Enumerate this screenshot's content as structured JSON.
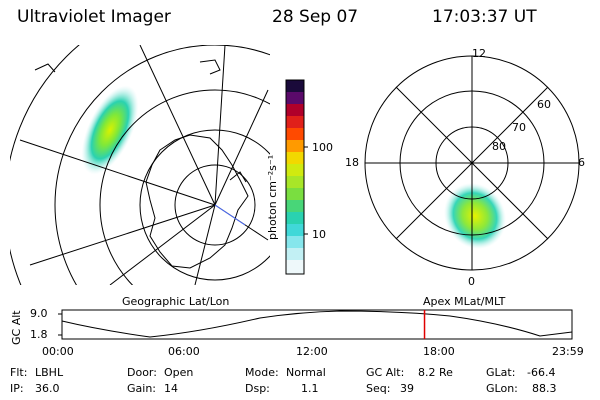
{
  "header": {
    "instrument": "Ultraviolet Imager",
    "date": "28 Sep 07",
    "time": "17:03:37 UT"
  },
  "colorbar": {
    "unit_label": "photon cm⁻²s⁻¹",
    "ticks": [
      "100",
      "10"
    ]
  },
  "polar_plot": {
    "mlt_labels": {
      "top": "12",
      "bottom": "0",
      "left": "18",
      "right": "6"
    },
    "lat_labels": [
      "60",
      "70",
      "80"
    ],
    "frame_label": "Apex MLat/MLT"
  },
  "geo_plot": {
    "frame_label": "Geographic Lat/Lon"
  },
  "altitude_panel": {
    "y_title": "GC Alt",
    "y_ticks": [
      "9.0",
      "1.8"
    ],
    "x_ticks": [
      "00:00",
      "06:00",
      "12:00",
      "18:00",
      "23:59"
    ],
    "marker_time_hours": 17.06,
    "marker_color": "#e00000"
  },
  "info": {
    "filter_label": "Flt:",
    "filter_value": "LBHL",
    "ip_label": "IP:",
    "ip_value": "36.0",
    "door_label": "Door:",
    "door_value": "Open",
    "gain_label": "Gain:",
    "gain_value": "14",
    "mode_label": "Mode:",
    "mode_value": "Normal",
    "dsp_label": "Dsp:",
    "dsp_value": "1.1",
    "gcalt_label": "GC Alt:",
    "gcalt_value": "8.2 Re",
    "seq_label": "Seq:",
    "seq_value": "39",
    "glat_label": "GLat:",
    "glat_value": "-66.4",
    "glon_label": "GLon:",
    "glon_value": "88.3"
  }
}
